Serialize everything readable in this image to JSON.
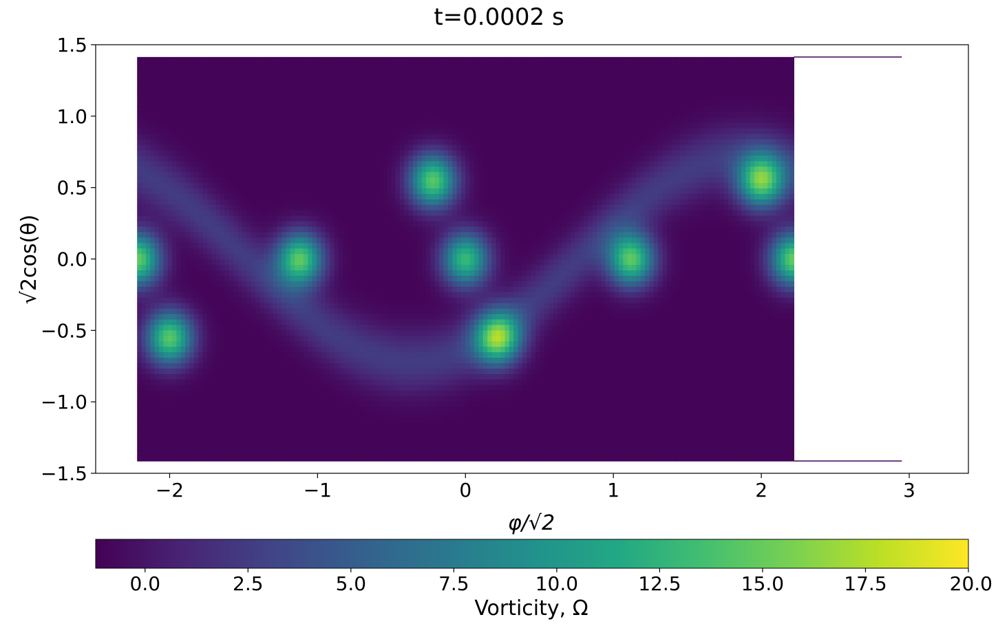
{
  "chart_data": {
    "type": "heatmap",
    "title": "t=0.0002 s",
    "xlabel": "φ/√2",
    "ylabel": "√2cos(θ)",
    "xlim": [
      -2.5,
      3.4
    ],
    "ylim": [
      -1.5,
      1.5
    ],
    "xticks": [
      -2,
      -1,
      0,
      1,
      2,
      3
    ],
    "yticks": [
      -1.5,
      -1.0,
      -0.5,
      0.0,
      0.5,
      1.0,
      1.5
    ],
    "xtick_labels": [
      "−2",
      "−1",
      "0",
      "1",
      "2",
      "3"
    ],
    "ytick_labels": [
      "−1.5",
      "−1.0",
      "−0.5",
      "0.0",
      "0.5",
      "1.0",
      "1.5"
    ],
    "colormap": "viridis",
    "colorbar": {
      "label": "Vorticity, Ω",
      "range": [
        -1.2,
        20.0
      ],
      "ticks": [
        0.0,
        2.5,
        5.0,
        7.5,
        10.0,
        12.5,
        15.0,
        17.5,
        20.0
      ],
      "tick_labels": [
        "0.0",
        "2.5",
        "5.0",
        "7.5",
        "10.0",
        "12.5",
        "15.0",
        "17.5",
        "20.0"
      ],
      "orientation": "horizontal"
    },
    "domain": {
      "x_range": [
        -2.22,
        2.22
      ],
      "y_range": [
        -1.414,
        1.414
      ],
      "background_vorticity": -1.0,
      "edge_lines_x_end": 2.95
    },
    "vortex_peaks": [
      {
        "x": -2.0,
        "y": -0.55,
        "value": 14.5
      },
      {
        "x": -2.22,
        "y": 0.0,
        "value": 15.0
      },
      {
        "x": -1.12,
        "y": 0.0,
        "value": 14.5
      },
      {
        "x": -0.22,
        "y": 0.55,
        "value": 14.5
      },
      {
        "x": 0.0,
        "y": 0.0,
        "value": 13.0
      },
      {
        "x": 0.22,
        "y": -0.55,
        "value": 14.5
      },
      {
        "x": 1.12,
        "y": 0.0,
        "value": 14.5
      },
      {
        "x": 2.0,
        "y": 0.55,
        "value": 14.5
      },
      {
        "x": 2.22,
        "y": 0.0,
        "value": 15.0
      }
    ]
  }
}
